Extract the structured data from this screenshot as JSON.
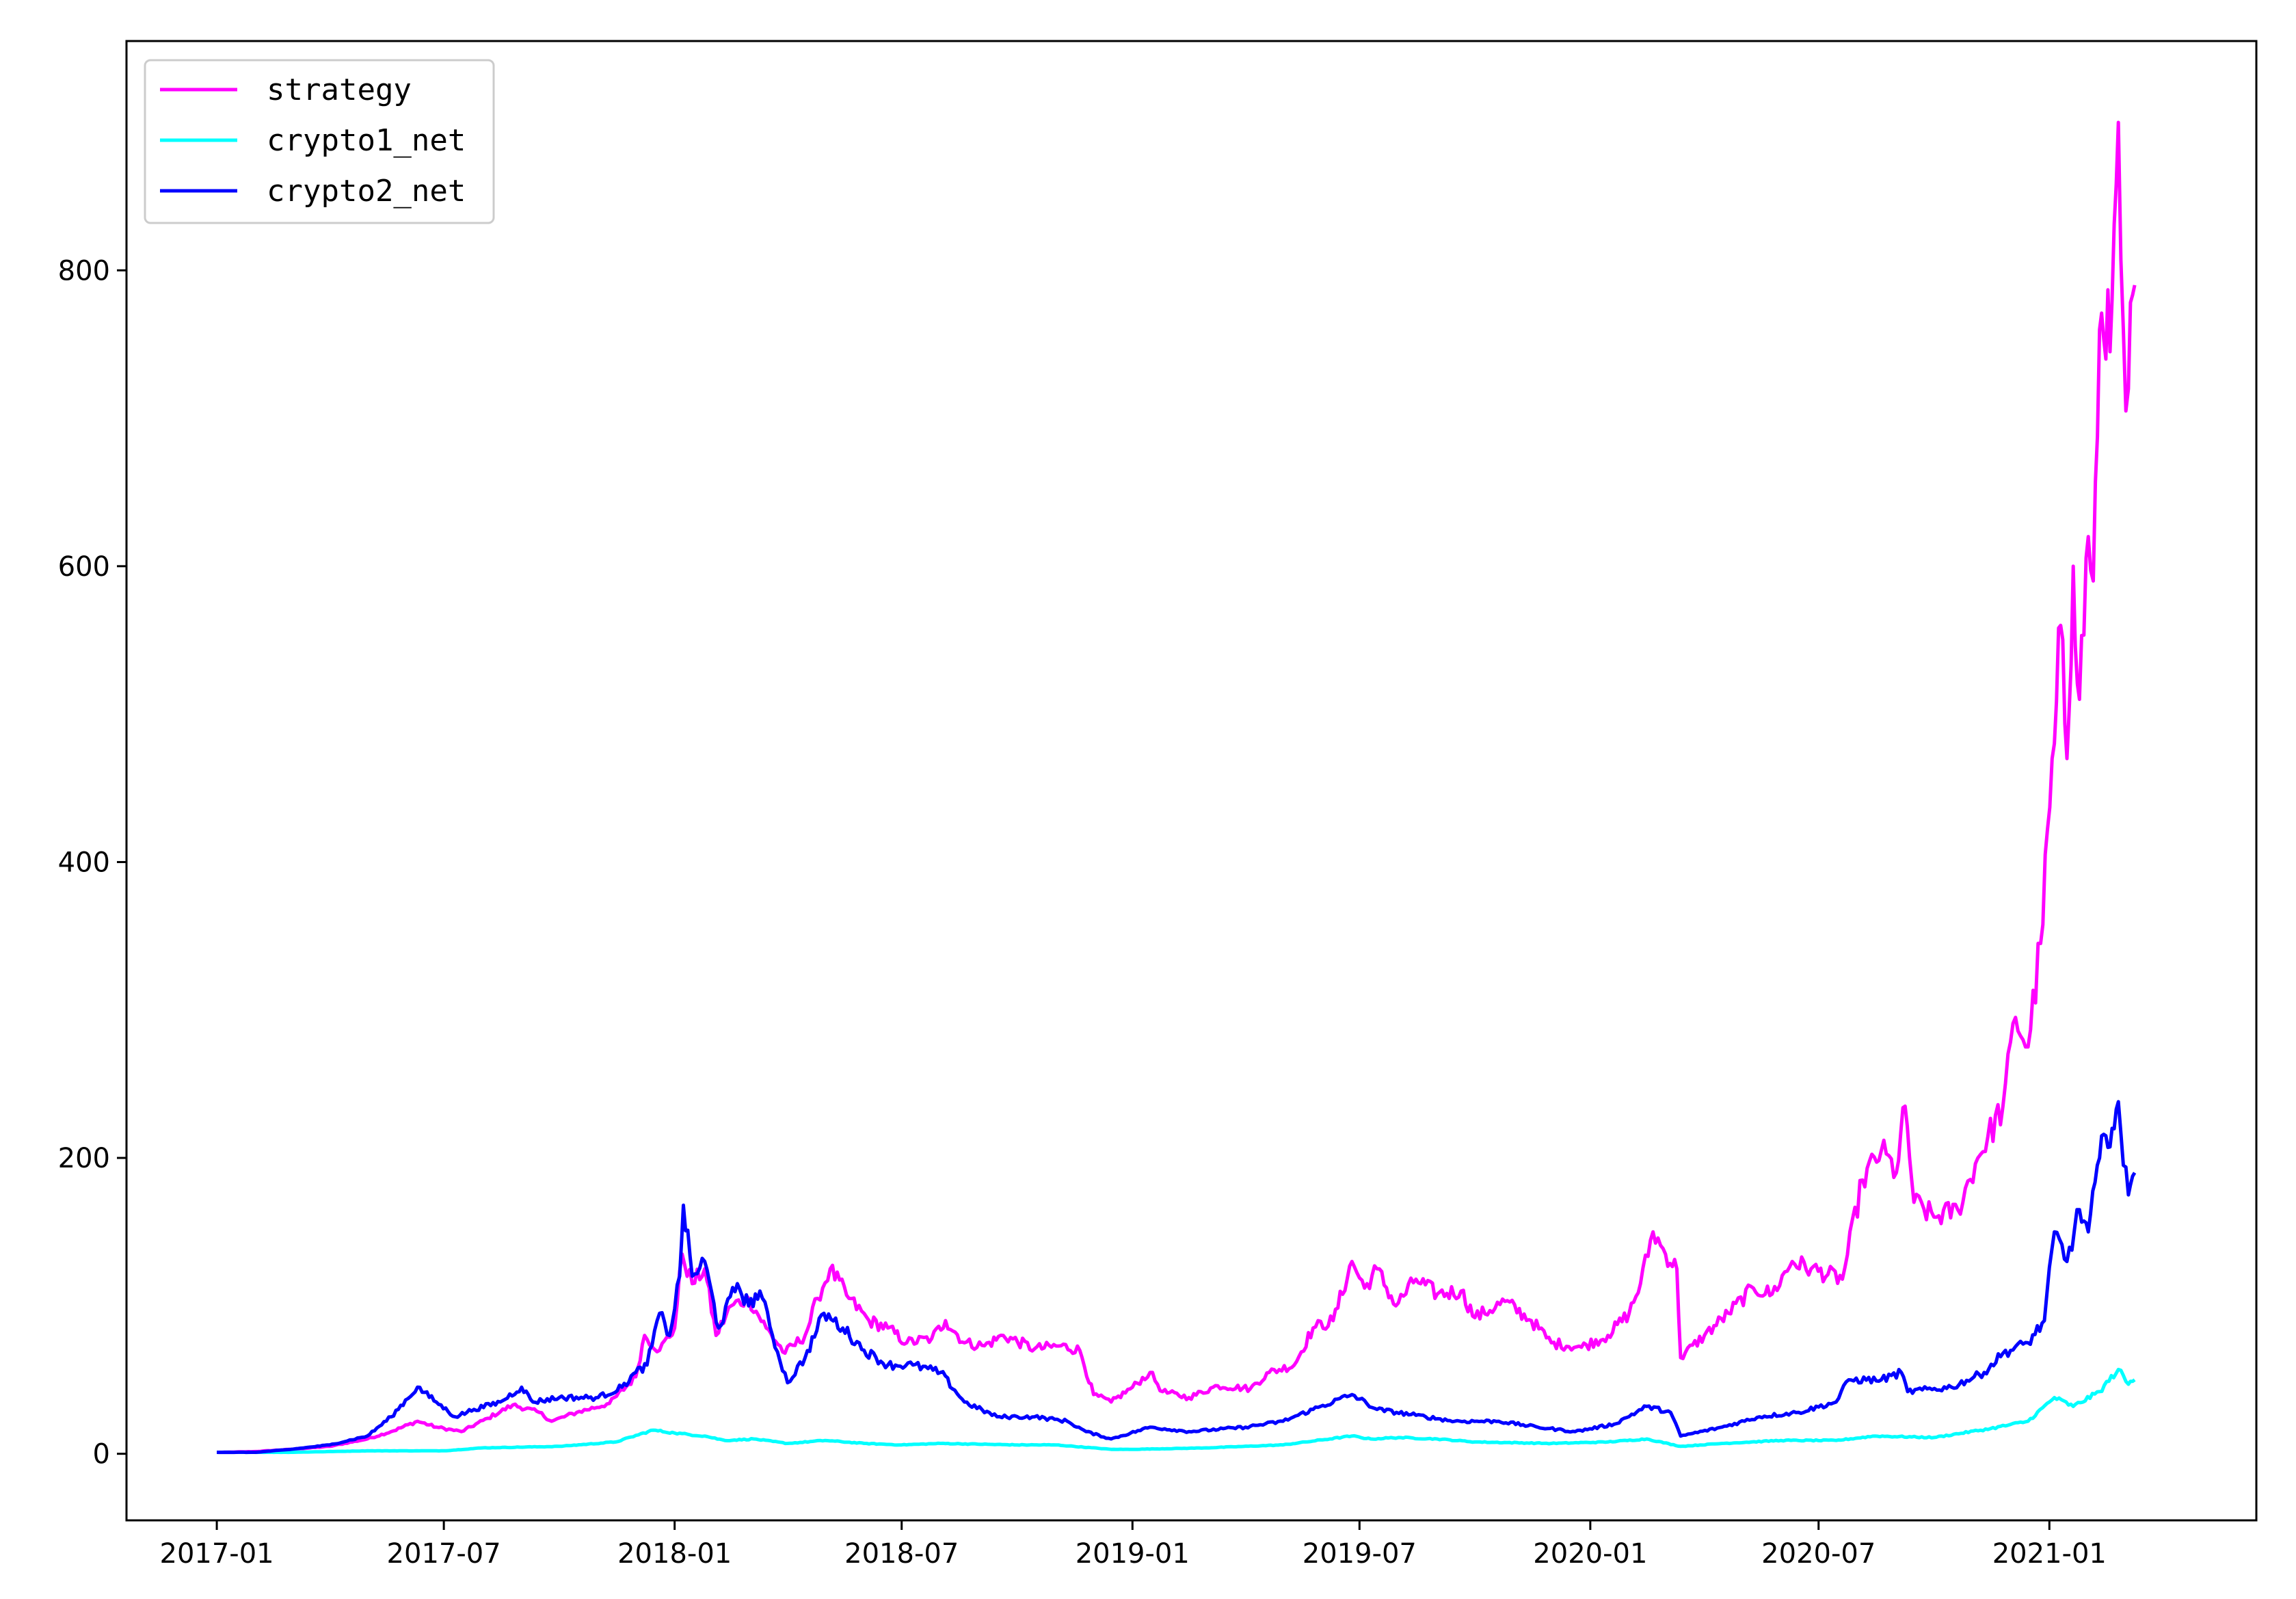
{
  "chart_data": {
    "type": "line",
    "title": "",
    "xlabel": "",
    "ylabel": "",
    "x_ticks": [
      "2017-01",
      "2017-07",
      "2018-01",
      "2018-07",
      "2019-01",
      "2019-07",
      "2020-01",
      "2020-07",
      "2021-01"
    ],
    "y_ticks": [
      0,
      200,
      400,
      600,
      800
    ],
    "xlim": [
      "2016-10-21",
      "2021-06-15"
    ],
    "ylim": [
      -45,
      955
    ],
    "grid": false,
    "legend_position": "top-left",
    "series": [
      {
        "name": "strategy",
        "color": "#ff00ff",
        "points": [
          [
            "2017-01-01",
            1
          ],
          [
            "2017-02-01",
            1.5
          ],
          [
            "2017-03-01",
            3
          ],
          [
            "2017-04-01",
            5
          ],
          [
            "2017-05-01",
            10
          ],
          [
            "2017-05-20",
            15
          ],
          [
            "2017-06-10",
            22
          ],
          [
            "2017-06-25",
            18
          ],
          [
            "2017-07-15",
            15
          ],
          [
            "2017-08-05",
            24
          ],
          [
            "2017-08-25",
            33
          ],
          [
            "2017-09-15",
            28
          ],
          [
            "2017-09-25",
            22
          ],
          [
            "2017-10-15",
            28
          ],
          [
            "2017-11-10",
            34
          ],
          [
            "2017-12-01",
            52
          ],
          [
            "2017-12-08",
            80
          ],
          [
            "2017-12-20",
            70
          ],
          [
            "2018-01-01",
            85
          ],
          [
            "2018-01-07",
            135
          ],
          [
            "2018-01-15",
            115
          ],
          [
            "2018-01-25",
            125
          ],
          [
            "2018-02-03",
            80
          ],
          [
            "2018-02-15",
            100
          ],
          [
            "2018-03-01",
            105
          ],
          [
            "2018-03-15",
            85
          ],
          [
            "2018-03-30",
            68
          ],
          [
            "2018-04-15",
            80
          ],
          [
            "2018-04-25",
            105
          ],
          [
            "2018-05-05",
            125
          ],
          [
            "2018-05-20",
            105
          ],
          [
            "2018-06-05",
            90
          ],
          [
            "2018-06-20",
            85
          ],
          [
            "2018-07-05",
            75
          ],
          [
            "2018-07-25",
            78
          ],
          [
            "2018-08-05",
            90
          ],
          [
            "2018-08-20",
            75
          ],
          [
            "2018-09-05",
            73
          ],
          [
            "2018-09-20",
            80
          ],
          [
            "2018-10-15",
            71
          ],
          [
            "2018-11-05",
            73
          ],
          [
            "2018-11-20",
            70
          ],
          [
            "2018-12-01",
            40
          ],
          [
            "2018-12-15",
            35
          ],
          [
            "2019-01-01",
            45
          ],
          [
            "2019-01-15",
            55
          ],
          [
            "2019-01-25",
            42
          ],
          [
            "2019-02-15",
            38
          ],
          [
            "2019-03-10",
            46
          ],
          [
            "2019-04-05",
            44
          ],
          [
            "2019-04-20",
            55
          ],
          [
            "2019-05-10",
            60
          ],
          [
            "2019-05-25",
            85
          ],
          [
            "2019-06-10",
            90
          ],
          [
            "2019-06-25",
            130
          ],
          [
            "2019-07-05",
            112
          ],
          [
            "2019-07-15",
            125
          ],
          [
            "2019-07-30",
            100
          ],
          [
            "2019-08-15",
            118
          ],
          [
            "2019-09-01",
            108
          ],
          [
            "2019-09-20",
            110
          ],
          [
            "2019-10-01",
            92
          ],
          [
            "2019-10-25",
            103
          ],
          [
            "2019-11-15",
            90
          ],
          [
            "2019-12-01",
            75
          ],
          [
            "2019-12-25",
            72
          ],
          [
            "2020-01-15",
            80
          ],
          [
            "2020-02-01",
            95
          ],
          [
            "2020-02-10",
            115
          ],
          [
            "2020-02-20",
            150
          ],
          [
            "2020-03-01",
            135
          ],
          [
            "2020-03-10",
            125
          ],
          [
            "2020-03-13",
            65
          ],
          [
            "2020-04-01",
            80
          ],
          [
            "2020-04-20",
            95
          ],
          [
            "2020-05-10",
            112
          ],
          [
            "2020-05-25",
            108
          ],
          [
            "2020-06-10",
            130
          ],
          [
            "2020-06-25",
            125
          ],
          [
            "2020-07-20",
            118
          ],
          [
            "2020-08-05",
            185
          ],
          [
            "2020-08-20",
            205
          ],
          [
            "2020-09-01",
            190
          ],
          [
            "2020-09-08",
            235
          ],
          [
            "2020-09-15",
            170
          ],
          [
            "2020-10-01",
            160
          ],
          [
            "2020-10-20",
            165
          ],
          [
            "2020-11-05",
            200
          ],
          [
            "2020-11-25",
            235
          ],
          [
            "2020-12-05",
            295
          ],
          [
            "2020-12-15",
            275
          ],
          [
            "2020-12-25",
            345
          ],
          [
            "2021-01-05",
            480
          ],
          [
            "2021-01-10",
            560
          ],
          [
            "2021-01-15",
            470
          ],
          [
            "2021-01-20",
            600
          ],
          [
            "2021-01-25",
            510
          ],
          [
            "2021-02-01",
            620
          ],
          [
            "2021-02-05",
            590
          ],
          [
            "2021-02-10",
            760
          ],
          [
            "2021-02-15",
            740
          ],
          [
            "2021-02-20",
            780
          ],
          [
            "2021-02-25",
            900
          ],
          [
            "2021-03-01",
            760
          ],
          [
            "2021-03-05",
            720
          ],
          [
            "2021-03-10",
            790
          ]
        ]
      },
      {
        "name": "crypto1_net",
        "color": "#00ffff",
        "points": [
          [
            "2017-01-01",
            1
          ],
          [
            "2017-03-01",
            1
          ],
          [
            "2017-05-01",
            2
          ],
          [
            "2017-07-01",
            2
          ],
          [
            "2017-08-01",
            4
          ],
          [
            "2017-10-01",
            5
          ],
          [
            "2017-11-15",
            8
          ],
          [
            "2017-12-15",
            16
          ],
          [
            "2018-01-01",
            14
          ],
          [
            "2018-01-25",
            12
          ],
          [
            "2018-02-10",
            9
          ],
          [
            "2018-03-05",
            10
          ],
          [
            "2018-04-01",
            7
          ],
          [
            "2018-05-01",
            9
          ],
          [
            "2018-06-01",
            7
          ],
          [
            "2018-07-01",
            6
          ],
          [
            "2018-08-01",
            7
          ],
          [
            "2018-10-01",
            6
          ],
          [
            "2018-11-01",
            6
          ],
          [
            "2018-12-15",
            3
          ],
          [
            "2019-01-01",
            3
          ],
          [
            "2019-03-01",
            4
          ],
          [
            "2019-05-01",
            6
          ],
          [
            "2019-06-25",
            12
          ],
          [
            "2019-07-10",
            10
          ],
          [
            "2019-08-01",
            11
          ],
          [
            "2019-09-01",
            10
          ],
          [
            "2019-10-01",
            8
          ],
          [
            "2019-12-01",
            7
          ],
          [
            "2020-01-15",
            8
          ],
          [
            "2020-02-15",
            10
          ],
          [
            "2020-03-13",
            5
          ],
          [
            "2020-04-15",
            7
          ],
          [
            "2020-06-01",
            9
          ],
          [
            "2020-07-15",
            9
          ],
          [
            "2020-08-15",
            12
          ],
          [
            "2020-10-01",
            11
          ],
          [
            "2020-11-15",
            17
          ],
          [
            "2020-12-15",
            22
          ],
          [
            "2021-01-05",
            38
          ],
          [
            "2021-01-20",
            32
          ],
          [
            "2021-02-10",
            42
          ],
          [
            "2021-02-25",
            57
          ],
          [
            "2021-03-05",
            47
          ],
          [
            "2021-03-10",
            50
          ]
        ]
      },
      {
        "name": "crypto2_net",
        "color": "#0000ff",
        "points": [
          [
            "2017-01-01",
            1
          ],
          [
            "2017-02-01",
            1
          ],
          [
            "2017-03-01",
            3
          ],
          [
            "2017-04-01",
            6
          ],
          [
            "2017-05-01",
            12
          ],
          [
            "2017-05-20",
            25
          ],
          [
            "2017-06-10",
            45
          ],
          [
            "2017-06-25",
            35
          ],
          [
            "2017-07-10",
            25
          ],
          [
            "2017-07-25",
            30
          ],
          [
            "2017-08-15",
            35
          ],
          [
            "2017-09-01",
            45
          ],
          [
            "2017-09-10",
            35
          ],
          [
            "2017-10-01",
            38
          ],
          [
            "2017-11-01",
            38
          ],
          [
            "2017-11-20",
            45
          ],
          [
            "2017-12-01",
            55
          ],
          [
            "2017-12-10",
            60
          ],
          [
            "2017-12-20",
            95
          ],
          [
            "2017-12-28",
            80
          ],
          [
            "2018-01-05",
            120
          ],
          [
            "2018-01-08",
            168
          ],
          [
            "2018-01-15",
            120
          ],
          [
            "2018-01-25",
            130
          ],
          [
            "2018-02-05",
            85
          ],
          [
            "2018-02-20",
            115
          ],
          [
            "2018-03-01",
            100
          ],
          [
            "2018-03-10",
            110
          ],
          [
            "2018-03-20",
            80
          ],
          [
            "2018-04-01",
            48
          ],
          [
            "2018-04-15",
            65
          ],
          [
            "2018-04-30",
            95
          ],
          [
            "2018-05-15",
            85
          ],
          [
            "2018-06-01",
            70
          ],
          [
            "2018-06-20",
            60
          ],
          [
            "2018-07-10",
            60
          ],
          [
            "2018-08-01",
            55
          ],
          [
            "2018-08-20",
            35
          ],
          [
            "2018-09-15",
            25
          ],
          [
            "2018-10-15",
            25
          ],
          [
            "2018-11-10",
            22
          ],
          [
            "2018-11-25",
            15
          ],
          [
            "2018-12-15",
            10
          ],
          [
            "2019-01-15",
            18
          ],
          [
            "2019-02-15",
            15
          ],
          [
            "2019-04-01",
            18
          ],
          [
            "2019-05-01",
            22
          ],
          [
            "2019-05-25",
            30
          ],
          [
            "2019-06-25",
            40
          ],
          [
            "2019-07-15",
            30
          ],
          [
            "2019-08-15",
            26
          ],
          [
            "2019-09-15",
            22
          ],
          [
            "2019-10-20",
            22
          ],
          [
            "2019-11-20",
            18
          ],
          [
            "2019-12-20",
            15
          ],
          [
            "2020-01-20",
            20
          ],
          [
            "2020-02-15",
            32
          ],
          [
            "2020-03-05",
            28
          ],
          [
            "2020-03-13",
            12
          ],
          [
            "2020-04-15",
            18
          ],
          [
            "2020-05-15",
            25
          ],
          [
            "2020-06-15",
            28
          ],
          [
            "2020-07-15",
            35
          ],
          [
            "2020-07-25",
            50
          ],
          [
            "2020-08-20",
            50
          ],
          [
            "2020-09-05",
            55
          ],
          [
            "2020-09-10",
            42
          ],
          [
            "2020-10-15",
            45
          ],
          [
            "2020-11-10",
            55
          ],
          [
            "2020-11-25",
            68
          ],
          [
            "2020-12-15",
            75
          ],
          [
            "2020-12-28",
            90
          ],
          [
            "2021-01-05",
            150
          ],
          [
            "2021-01-15",
            130
          ],
          [
            "2021-01-25",
            165
          ],
          [
            "2021-02-01",
            150
          ],
          [
            "2021-02-10",
            200
          ],
          [
            "2021-02-15",
            215
          ],
          [
            "2021-02-20",
            220
          ],
          [
            "2021-02-25",
            238
          ],
          [
            "2021-03-01",
            195
          ],
          [
            "2021-03-05",
            175
          ],
          [
            "2021-03-10",
            190
          ]
        ]
      }
    ]
  }
}
